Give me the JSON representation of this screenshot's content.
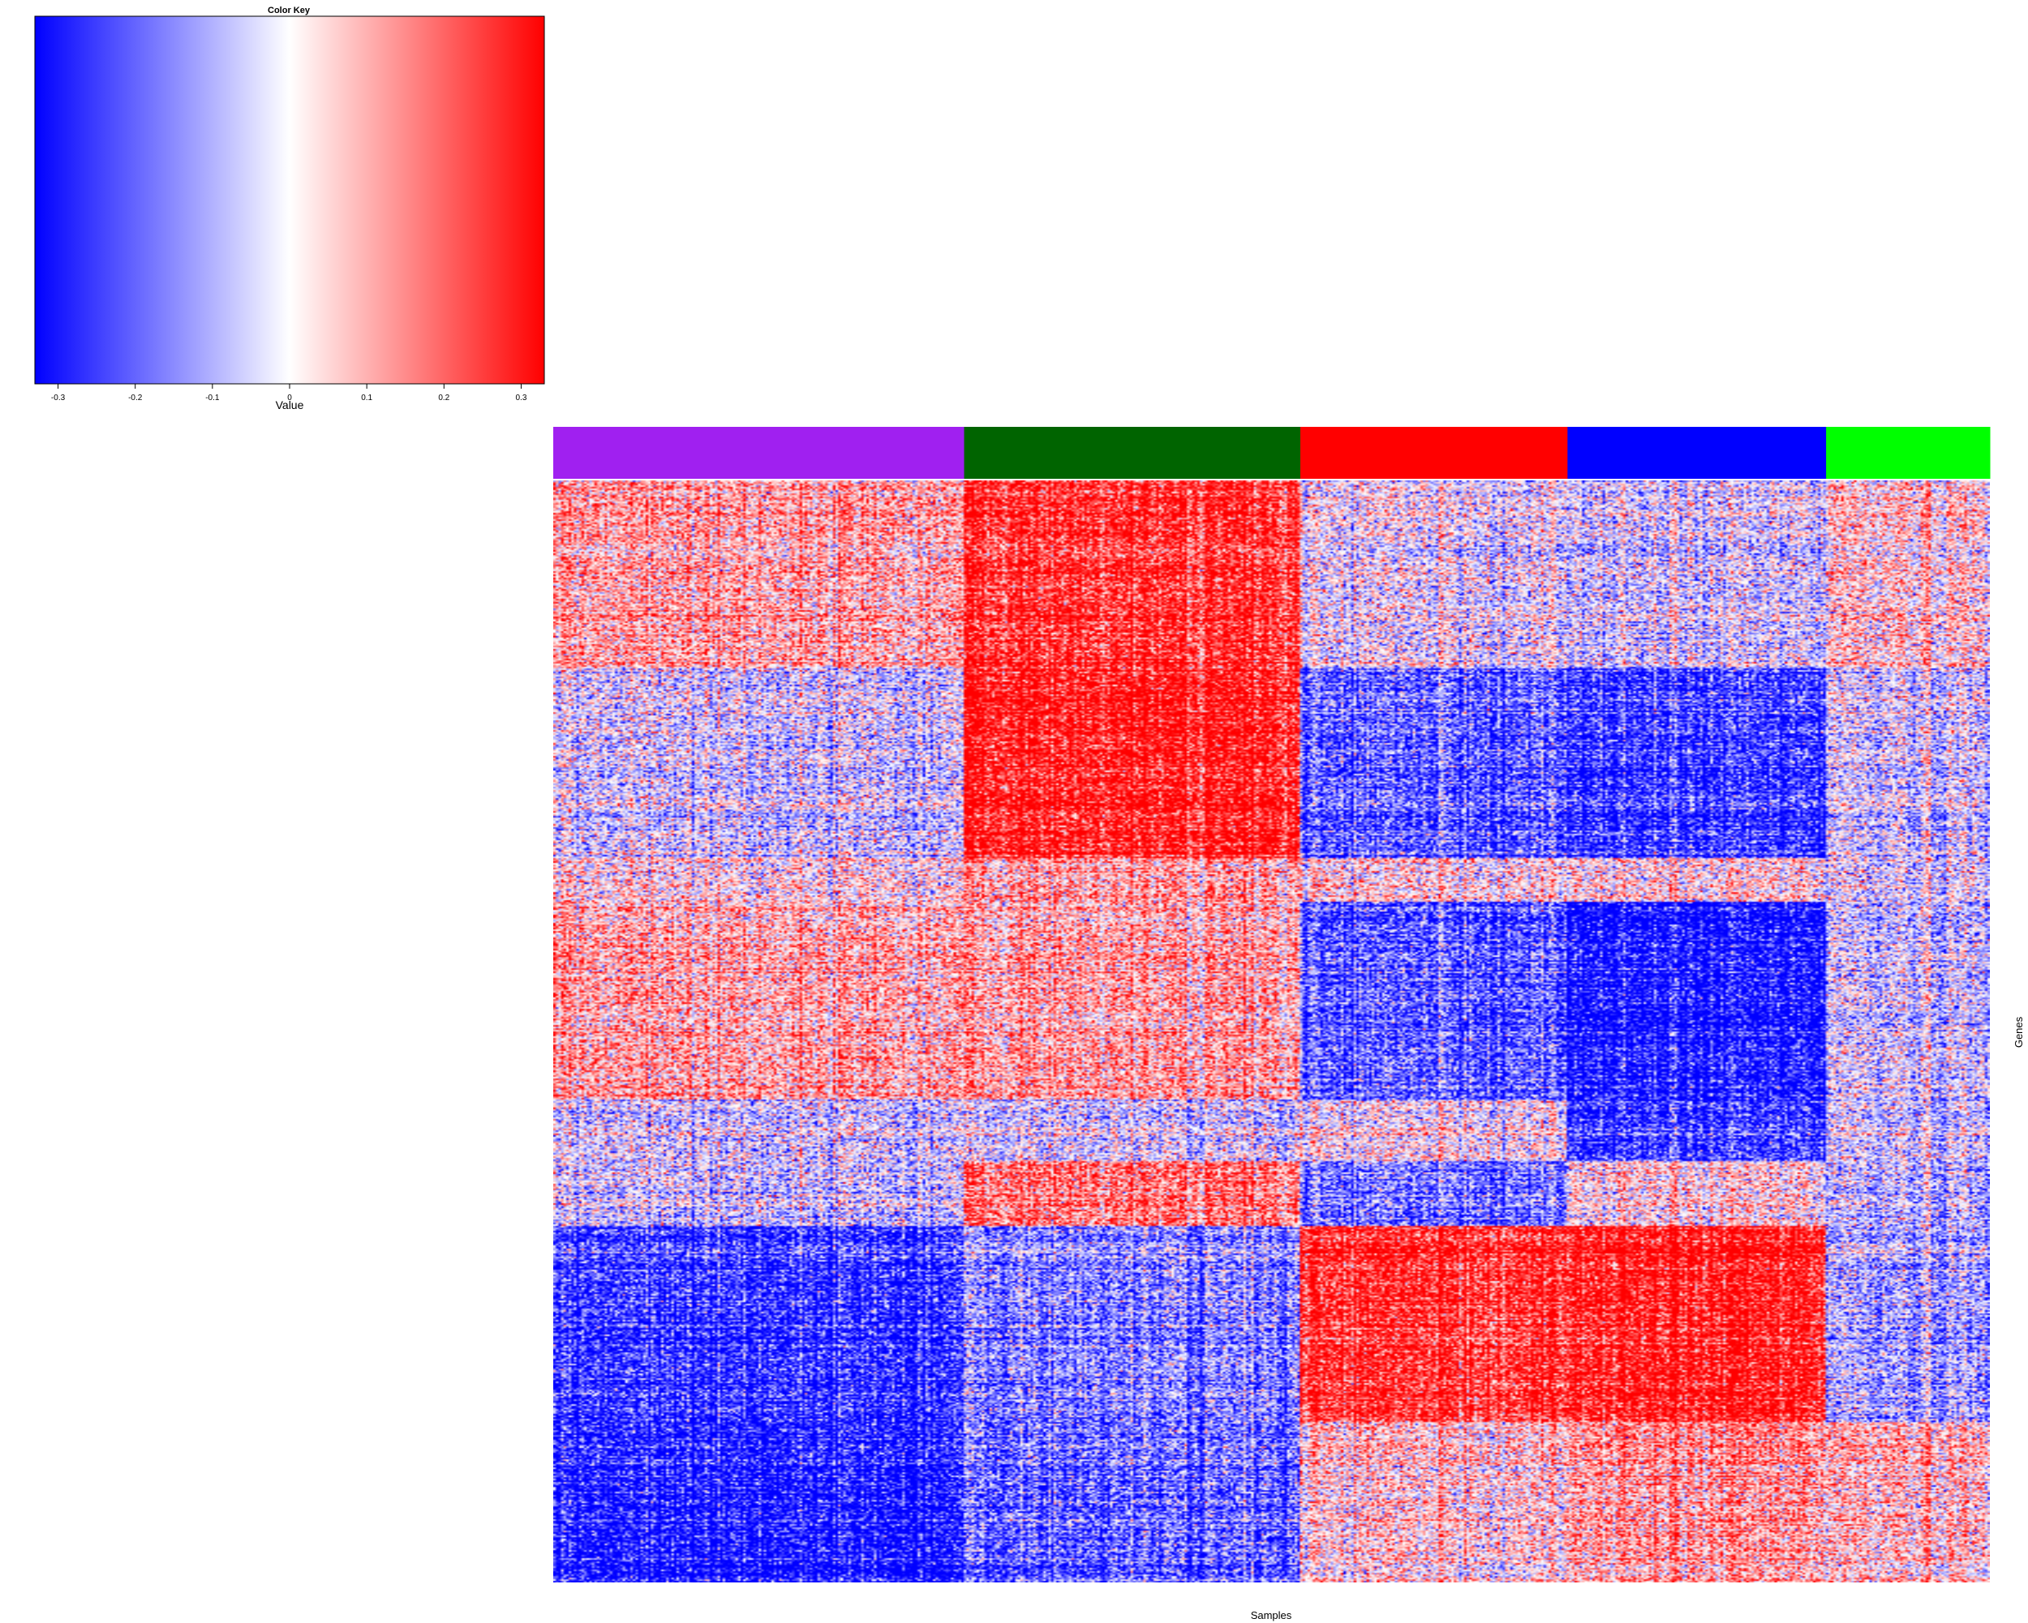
{
  "chart_data": {
    "type": "heatmap",
    "color_key": {
      "title": "Color Key",
      "xlabel": "Value",
      "range": [
        -0.33,
        0.33
      ],
      "ticks": [
        "-0.3",
        "-0.2",
        "-0.1",
        "0",
        "0.1",
        "0.2",
        "0.3"
      ],
      "tick_values": [
        -0.3,
        -0.2,
        -0.1,
        0,
        0.1,
        0.2,
        0.3
      ],
      "low_color": "#0000ff",
      "mid_color": "#ffffff",
      "high_color": "#ff0000"
    },
    "xlabel": "Samples",
    "ylabel": "Genes",
    "sample_groups": [
      {
        "color": "#a020f0",
        "fraction": 0.286
      },
      {
        "color": "#006400",
        "fraction": 0.234
      },
      {
        "color": "#ff0000",
        "fraction": 0.186
      },
      {
        "color": "#0000ff",
        "fraction": 0.18
      },
      {
        "color": "#00ff00",
        "fraction": 0.114
      }
    ],
    "gene_blocks": [
      {
        "fraction": 0.17,
        "group_means": [
          0.1,
          0.25,
          -0.02,
          -0.05,
          0.05
        ]
      },
      {
        "fraction": 0.172,
        "group_means": [
          -0.05,
          0.28,
          -0.2,
          -0.25,
          -0.05
        ]
      },
      {
        "fraction": 0.04,
        "group_means": [
          0.05,
          0.12,
          0.05,
          0.05,
          0.0
        ]
      },
      {
        "fraction": 0.18,
        "group_means": [
          0.1,
          0.1,
          -0.2,
          -0.3,
          -0.05
        ]
      },
      {
        "fraction": 0.055,
        "group_means": [
          -0.05,
          -0.05,
          0.0,
          -0.25,
          -0.05
        ]
      },
      {
        "fraction": 0.06,
        "group_means": [
          -0.03,
          0.18,
          -0.15,
          0.05,
          -0.05
        ]
      },
      {
        "fraction": 0.178,
        "group_means": [
          -0.25,
          -0.15,
          0.25,
          0.28,
          -0.1
        ]
      },
      {
        "fraction": 0.145,
        "group_means": [
          -0.28,
          -0.18,
          0.05,
          0.12,
          0.08
        ]
      }
    ]
  }
}
